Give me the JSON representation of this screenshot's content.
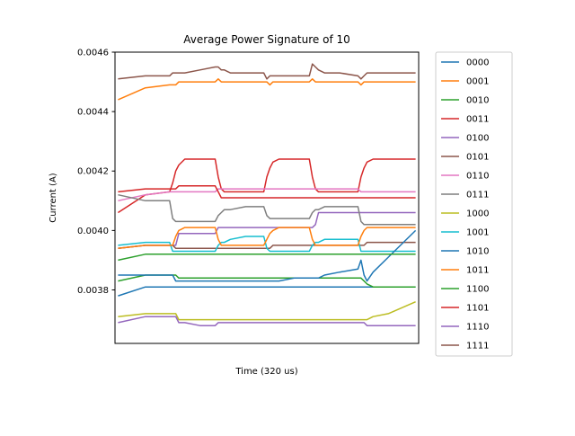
{
  "chart_data": {
    "type": "line",
    "title": "Average Power Signature of 10",
    "xlabel": "Time (320 us)",
    "ylabel": "Current (A)",
    "ylim": [
      0.00362,
      0.0046
    ],
    "xlim": [
      0,
      100
    ],
    "yticks": [
      0.0038,
      0.004,
      0.0042,
      0.0044,
      0.0046
    ],
    "ytick_labels": [
      "0.0038",
      "0.0040",
      "0.0042",
      "0.0044",
      "0.0046"
    ],
    "xticks_shown": false,
    "grid": false,
    "legend_position": "outside-right",
    "x": [
      1,
      10,
      18,
      19,
      20,
      21,
      23,
      28,
      33,
      34,
      35,
      36,
      38,
      43,
      49,
      50,
      51,
      52,
      54,
      59,
      64,
      65,
      66,
      67,
      69,
      74,
      80,
      81,
      82,
      83,
      85,
      90,
      99
    ],
    "series": [
      {
        "name": "0000",
        "color": "#1f77b4",
        "values": [
          0.00378,
          0.00381,
          0.00381,
          0.00381,
          0.00381,
          0.00381,
          0.00381,
          0.00381,
          0.00381,
          0.00381,
          0.00381,
          0.00381,
          0.00381,
          0.00381,
          0.00381,
          0.00381,
          0.00381,
          0.00381,
          0.00381,
          0.00381,
          0.00381,
          0.00381,
          0.00381,
          0.00381,
          0.00381,
          0.00381,
          0.00381,
          0.00381,
          0.00381,
          0.00381,
          0.00381,
          0.00381,
          0.00381
        ]
      },
      {
        "name": "0001",
        "color": "#ff7f0e",
        "values": [
          0.00444,
          0.00448,
          0.00449,
          0.00449,
          0.00449,
          0.0045,
          0.0045,
          0.0045,
          0.0045,
          0.00451,
          0.0045,
          0.0045,
          0.0045,
          0.0045,
          0.0045,
          0.0045,
          0.00449,
          0.0045,
          0.0045,
          0.0045,
          0.0045,
          0.00451,
          0.0045,
          0.0045,
          0.0045,
          0.0045,
          0.0045,
          0.00449,
          0.0045,
          0.0045,
          0.0045,
          0.0045,
          0.0045
        ]
      },
      {
        "name": "0010",
        "color": "#2ca02c",
        "values": [
          0.00383,
          0.00385,
          0.00385,
          0.00385,
          0.00385,
          0.00384,
          0.00384,
          0.00384,
          0.00384,
          0.00384,
          0.00384,
          0.00384,
          0.00384,
          0.00384,
          0.00384,
          0.00384,
          0.00384,
          0.00384,
          0.00384,
          0.00384,
          0.00384,
          0.00384,
          0.00384,
          0.00384,
          0.00384,
          0.00384,
          0.00384,
          0.00384,
          0.00383,
          0.00382,
          0.00381,
          0.00381,
          0.00381
        ]
      },
      {
        "name": "0011",
        "color": "#d62728",
        "values": [
          0.00406,
          0.00412,
          0.00413,
          0.00416,
          0.0042,
          0.00422,
          0.00424,
          0.00424,
          0.00424,
          0.00418,
          0.00414,
          0.00413,
          0.00413,
          0.00413,
          0.00413,
          0.00418,
          0.00421,
          0.00423,
          0.00424,
          0.00424,
          0.00424,
          0.00418,
          0.00414,
          0.00413,
          0.00413,
          0.00413,
          0.00413,
          0.00418,
          0.00421,
          0.00423,
          0.00424,
          0.00424,
          0.00424
        ]
      },
      {
        "name": "0100",
        "color": "#9467bd",
        "values": [
          0.00394,
          0.00395,
          0.00395,
          0.00395,
          0.00395,
          0.00399,
          0.00399,
          0.00399,
          0.00399,
          0.00401,
          0.00401,
          0.00401,
          0.00401,
          0.00401,
          0.00401,
          0.00401,
          0.00401,
          0.00401,
          0.00401,
          0.00401,
          0.00401,
          0.00401,
          0.00402,
          0.00406,
          0.00406,
          0.00406,
          0.00406,
          0.00406,
          0.00406,
          0.00406,
          0.00406,
          0.00406,
          0.00406
        ]
      },
      {
        "name": "0101",
        "color": "#8c564b",
        "values": [
          0.00394,
          0.00395,
          0.00395,
          0.00395,
          0.00394,
          0.00394,
          0.00394,
          0.00394,
          0.00394,
          0.00394,
          0.00394,
          0.00394,
          0.00394,
          0.00394,
          0.00394,
          0.00394,
          0.00394,
          0.00395,
          0.00395,
          0.00395,
          0.00395,
          0.00395,
          0.00395,
          0.00395,
          0.00395,
          0.00395,
          0.00395,
          0.00395,
          0.00395,
          0.00396,
          0.00396,
          0.00396,
          0.00396
        ]
      },
      {
        "name": "0110",
        "color": "#e377c2",
        "values": [
          0.0041,
          0.00412,
          0.00413,
          0.00413,
          0.00413,
          0.00413,
          0.00413,
          0.00413,
          0.00413,
          0.00414,
          0.00414,
          0.00414,
          0.00414,
          0.00414,
          0.00414,
          0.00414,
          0.00414,
          0.00414,
          0.00414,
          0.00414,
          0.00414,
          0.00414,
          0.00414,
          0.00414,
          0.00414,
          0.00414,
          0.00414,
          0.00413,
          0.00413,
          0.00413,
          0.00413,
          0.00413,
          0.00413
        ]
      },
      {
        "name": "0111",
        "color": "#7f7f7f",
        "values": [
          0.00412,
          0.0041,
          0.0041,
          0.00404,
          0.00403,
          0.00403,
          0.00403,
          0.00403,
          0.00403,
          0.00405,
          0.00406,
          0.00407,
          0.00407,
          0.00408,
          0.00408,
          0.00405,
          0.00404,
          0.00404,
          0.00404,
          0.00404,
          0.00404,
          0.00406,
          0.00407,
          0.00407,
          0.00408,
          0.00408,
          0.00408,
          0.00403,
          0.00402,
          0.00402,
          0.00402,
          0.00402,
          0.00402
        ]
      },
      {
        "name": "1000",
        "color": "#bcbd22",
        "values": [
          0.00371,
          0.00372,
          0.00372,
          0.00372,
          0.00372,
          0.0037,
          0.0037,
          0.0037,
          0.0037,
          0.0037,
          0.0037,
          0.0037,
          0.0037,
          0.0037,
          0.0037,
          0.0037,
          0.0037,
          0.0037,
          0.0037,
          0.0037,
          0.0037,
          0.0037,
          0.0037,
          0.0037,
          0.0037,
          0.0037,
          0.0037,
          0.0037,
          0.0037,
          0.0037,
          0.00371,
          0.00372,
          0.00376
        ]
      },
      {
        "name": "1001",
        "color": "#17becf",
        "values": [
          0.00395,
          0.00396,
          0.00396,
          0.00393,
          0.00393,
          0.00393,
          0.00393,
          0.00393,
          0.00393,
          0.00395,
          0.00396,
          0.00396,
          0.00397,
          0.00398,
          0.00398,
          0.00394,
          0.00393,
          0.00393,
          0.00393,
          0.00393,
          0.00393,
          0.00395,
          0.00396,
          0.00396,
          0.00397,
          0.00397,
          0.00397,
          0.00393,
          0.00393,
          0.00393,
          0.00393,
          0.00393,
          0.00393
        ]
      },
      {
        "name": "1010",
        "color": "#1f77b4",
        "values": [
          0.00385,
          0.00385,
          0.00385,
          0.00385,
          0.00383,
          0.00383,
          0.00383,
          0.00383,
          0.00383,
          0.00383,
          0.00383,
          0.00383,
          0.00383,
          0.00383,
          0.00383,
          0.00383,
          0.00383,
          0.00383,
          0.00383,
          0.00384,
          0.00384,
          0.00384,
          0.00384,
          0.00384,
          0.00385,
          0.00386,
          0.00387,
          0.0039,
          0.00385,
          0.00383,
          0.00386,
          0.00391,
          0.004
        ]
      },
      {
        "name": "1011",
        "color": "#ff7f0e",
        "values": [
          0.00394,
          0.00395,
          0.00395,
          0.00395,
          0.00398,
          0.004,
          0.00401,
          0.00401,
          0.00401,
          0.00397,
          0.00395,
          0.00395,
          0.00395,
          0.00395,
          0.00395,
          0.00397,
          0.00399,
          0.004,
          0.00401,
          0.00401,
          0.00401,
          0.00397,
          0.00395,
          0.00395,
          0.00395,
          0.00395,
          0.00395,
          0.00398,
          0.004,
          0.00401,
          0.00401,
          0.00401,
          0.00401
        ]
      },
      {
        "name": "1100",
        "color": "#2ca02c",
        "values": [
          0.0039,
          0.00392,
          0.00392,
          0.00392,
          0.00392,
          0.00392,
          0.00392,
          0.00392,
          0.00392,
          0.00392,
          0.00392,
          0.00392,
          0.00392,
          0.00392,
          0.00392,
          0.00392,
          0.00392,
          0.00392,
          0.00392,
          0.00392,
          0.00392,
          0.00392,
          0.00392,
          0.00392,
          0.00392,
          0.00392,
          0.00392,
          0.00392,
          0.00392,
          0.00392,
          0.00392,
          0.00392,
          0.00392
        ]
      },
      {
        "name": "1101",
        "color": "#d62728",
        "values": [
          0.00413,
          0.00414,
          0.00414,
          0.00414,
          0.00414,
          0.00415,
          0.00415,
          0.00415,
          0.00415,
          0.00413,
          0.00411,
          0.00411,
          0.00411,
          0.00411,
          0.00411,
          0.00411,
          0.00411,
          0.00411,
          0.00411,
          0.00411,
          0.00411,
          0.00411,
          0.00411,
          0.00411,
          0.00411,
          0.00411,
          0.00411,
          0.00411,
          0.00411,
          0.00411,
          0.00411,
          0.00411,
          0.00411
        ]
      },
      {
        "name": "1110",
        "color": "#9467bd",
        "values": [
          0.00369,
          0.00371,
          0.00371,
          0.00371,
          0.00371,
          0.00369,
          0.00369,
          0.00368,
          0.00368,
          0.00369,
          0.00369,
          0.00369,
          0.00369,
          0.00369,
          0.00369,
          0.00369,
          0.00369,
          0.00369,
          0.00369,
          0.00369,
          0.00369,
          0.00369,
          0.00369,
          0.00369,
          0.00369,
          0.00369,
          0.00369,
          0.00369,
          0.00369,
          0.00368,
          0.00368,
          0.00368,
          0.00368
        ]
      },
      {
        "name": "1111",
        "color": "#8c564b",
        "values": [
          0.00451,
          0.00452,
          0.00452,
          0.00453,
          0.00453,
          0.00453,
          0.00453,
          0.00454,
          0.00455,
          0.00455,
          0.00454,
          0.00454,
          0.00453,
          0.00453,
          0.00453,
          0.00451,
          0.00452,
          0.00452,
          0.00452,
          0.00452,
          0.00452,
          0.00456,
          0.00455,
          0.00454,
          0.00453,
          0.00453,
          0.00452,
          0.00451,
          0.00452,
          0.00453,
          0.00453,
          0.00453,
          0.00453
        ]
      }
    ]
  }
}
